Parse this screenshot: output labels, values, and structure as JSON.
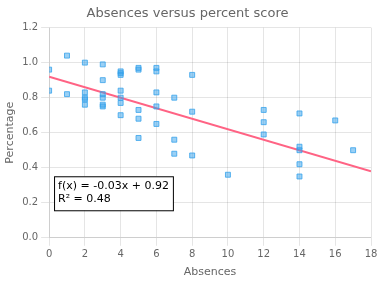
{
  "chart_data": {
    "type": "scatter",
    "title": "Absences versus percent score",
    "xlabel": "Absences",
    "ylabel": "Percentage",
    "series": [
      {
        "type": "scatter",
        "marker": "square",
        "x": [
          0,
          0,
          1,
          1,
          2,
          2,
          2,
          2,
          2,
          3,
          3,
          3,
          3,
          3,
          3,
          4,
          4,
          4,
          4,
          4,
          4,
          4,
          5,
          5,
          5,
          5,
          5,
          6,
          6,
          6,
          6,
          6,
          7,
          7,
          7,
          8,
          8,
          8,
          10,
          12,
          12,
          12,
          14,
          14,
          14,
          14,
          14,
          16,
          17
        ],
        "values": [
          0.96,
          0.84,
          1.04,
          0.82,
          1.0,
          0.83,
          0.8,
          0.79,
          0.76,
          0.99,
          0.9,
          0.82,
          0.8,
          0.76,
          0.75,
          0.95,
          0.94,
          0.93,
          0.84,
          0.8,
          0.77,
          0.7,
          0.97,
          0.96,
          0.73,
          0.68,
          0.57,
          0.97,
          0.95,
          0.83,
          0.75,
          0.65,
          0.8,
          0.56,
          0.48,
          0.93,
          0.72,
          0.47,
          0.36,
          0.73,
          0.66,
          0.59,
          0.71,
          0.52,
          0.5,
          0.42,
          0.35,
          0.67,
          0.5
        ]
      },
      {
        "type": "line",
        "x": [
          0,
          18
        ],
        "values": [
          0.92,
          0.38
        ]
      }
    ],
    "xlim": [
      0,
      18
    ],
    "ylim": [
      0,
      1.2
    ],
    "xticks": [
      0,
      2,
      4,
      6,
      8,
      10,
      12,
      14,
      16,
      18
    ],
    "yticks": [
      {
        "value": 0,
        "label": "0.0"
      },
      0.2,
      0.4,
      0.6,
      0.8,
      {
        "value": 1.0,
        "label": "1.0"
      },
      1.2
    ],
    "annotations": [
      {
        "text": "f(x) = -0.03x + 0.92\nR² = 0.48",
        "x": 0.5,
        "y": 0.18
      }
    ],
    "grid": true
  }
}
